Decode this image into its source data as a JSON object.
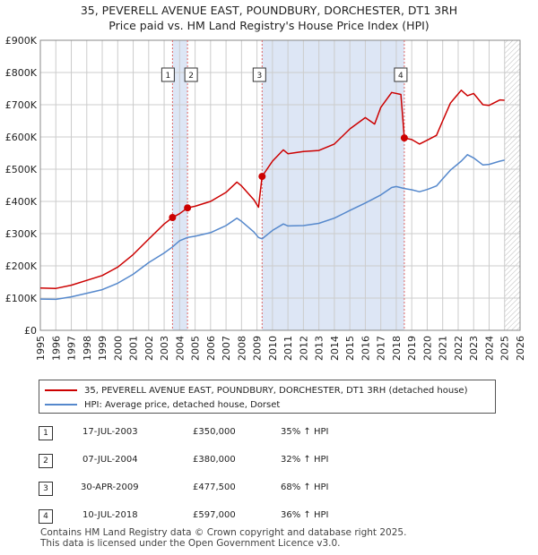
{
  "title_line1": "35, PEVERELL AVENUE EAST, POUNDBURY, DORCHESTER, DT1 3RH",
  "title_line2": "Price paid vs. HM Land Registry's House Price Index (HPI)",
  "legend": {
    "property": "35, PEVERELL AVENUE EAST, POUNDBURY, DORCHESTER, DT1 3RH (detached house)",
    "hpi": "HPI: Average price, detached house, Dorset"
  },
  "sales_table": [
    {
      "num": "1",
      "date": "17-JUL-2003",
      "price": "£350,000",
      "hpi": "35% ↑ HPI"
    },
    {
      "num": "2",
      "date": "07-JUL-2004",
      "price": "£380,000",
      "hpi": "32% ↑ HPI"
    },
    {
      "num": "3",
      "date": "30-APR-2009",
      "price": "£477,500",
      "hpi": "68% ↑ HPI"
    },
    {
      "num": "4",
      "date": "10-JUL-2018",
      "price": "£597,000",
      "hpi": "36% ↑ HPI"
    }
  ],
  "footer": {
    "line1": "Contains HM Land Registry data © Crown copyright and database right 2025.",
    "line2": "This data is licensed under the Open Government Licence v3.0."
  },
  "colors": {
    "property": "#cc0000",
    "hpi": "#5588cc",
    "shade": "#dde6f5",
    "grid": "#cccccc",
    "marker_line": "#dd6666"
  },
  "chart_data": {
    "type": "line",
    "x_axis": {
      "min": 1995,
      "max": 2026,
      "ticks": [
        "1995",
        "1996",
        "1997",
        "1998",
        "1999",
        "2000",
        "2001",
        "2002",
        "2003",
        "2004",
        "2005",
        "2006",
        "2007",
        "2008",
        "2009",
        "2010",
        "2011",
        "2012",
        "2013",
        "2014",
        "2015",
        "2016",
        "2017",
        "2018",
        "2019",
        "2020",
        "2021",
        "2022",
        "2023",
        "2024",
        "2025",
        "2026"
      ]
    },
    "y_axis": {
      "min": 0,
      "max": 900000,
      "tick_values": [
        0,
        100000,
        200000,
        300000,
        400000,
        500000,
        600000,
        700000,
        800000,
        900000
      ],
      "tick_labels": [
        "£0",
        "£100K",
        "£200K",
        "£300K",
        "£400K",
        "£500K",
        "£600K",
        "£700K",
        "£800K",
        "£900K"
      ]
    },
    "grid": true,
    "legend_position": "below",
    "shaded_periods": [
      [
        2003.54,
        2004.51
      ],
      [
        2009.33,
        2018.52
      ]
    ],
    "hatched_after": 2025.0,
    "sales": [
      {
        "label": "1",
        "x": 2003.54,
        "y": 350000
      },
      {
        "label": "2",
        "x": 2004.51,
        "y": 380000
      },
      {
        "label": "3",
        "x": 2009.33,
        "y": 477500
      },
      {
        "label": "4",
        "x": 2018.52,
        "y": 597000
      }
    ],
    "series": [
      {
        "name": "35, PEVERELL AVENUE EAST, POUNDBURY, DORCHESTER, DT1 3RH (detached house)",
        "color": "#cc0000",
        "points": [
          [
            1995,
            131000
          ],
          [
            1996,
            130000
          ],
          [
            1997,
            140000
          ],
          [
            1998,
            155000
          ],
          [
            1999,
            170000
          ],
          [
            2000,
            196000
          ],
          [
            2001,
            235000
          ],
          [
            2002,
            283000
          ],
          [
            2003,
            330000
          ],
          [
            2003.54,
            350000
          ],
          [
            2004,
            362000
          ],
          [
            2004.51,
            380000
          ],
          [
            2005,
            385000
          ],
          [
            2006,
            400000
          ],
          [
            2007,
            428000
          ],
          [
            2007.7,
            460000
          ],
          [
            2008,
            448000
          ],
          [
            2008.8,
            405000
          ],
          [
            2009.1,
            382000
          ],
          [
            2009.33,
            477500
          ],
          [
            2010,
            525000
          ],
          [
            2010.7,
            560000
          ],
          [
            2011,
            548000
          ],
          [
            2012,
            555000
          ],
          [
            2013,
            558000
          ],
          [
            2014,
            578000
          ],
          [
            2015,
            625000
          ],
          [
            2016,
            660000
          ],
          [
            2016.6,
            640000
          ],
          [
            2017,
            692000
          ],
          [
            2017.7,
            738000
          ],
          [
            2018.3,
            732000
          ],
          [
            2018.52,
            597000
          ],
          [
            2019,
            592000
          ],
          [
            2019.5,
            578000
          ],
          [
            2020,
            590000
          ],
          [
            2020.6,
            605000
          ],
          [
            2021,
            650000
          ],
          [
            2021.5,
            705000
          ],
          [
            2022.2,
            745000
          ],
          [
            2022.6,
            728000
          ],
          [
            2023,
            735000
          ],
          [
            2023.6,
            700000
          ],
          [
            2024,
            698000
          ],
          [
            2024.7,
            715000
          ],
          [
            2025,
            714000
          ]
        ]
      },
      {
        "name": "HPI: Average price, detached house, Dorset",
        "color": "#5588cc",
        "points": [
          [
            1995,
            97000
          ],
          [
            1996,
            96000
          ],
          [
            1997,
            104000
          ],
          [
            1998,
            115000
          ],
          [
            1999,
            126000
          ],
          [
            2000,
            146000
          ],
          [
            2001,
            174000
          ],
          [
            2002,
            210000
          ],
          [
            2003,
            240000
          ],
          [
            2003.54,
            259000
          ],
          [
            2004,
            278000
          ],
          [
            2004.51,
            288000
          ],
          [
            2005,
            292000
          ],
          [
            2006,
            303000
          ],
          [
            2007,
            325000
          ],
          [
            2007.7,
            348000
          ],
          [
            2008,
            338000
          ],
          [
            2008.8,
            305000
          ],
          [
            2009.1,
            288000
          ],
          [
            2009.33,
            284000
          ],
          [
            2010,
            310000
          ],
          [
            2010.7,
            330000
          ],
          [
            2011,
            324000
          ],
          [
            2012,
            325000
          ],
          [
            2013,
            332000
          ],
          [
            2014,
            348000
          ],
          [
            2015,
            372000
          ],
          [
            2016,
            395000
          ],
          [
            2017,
            420000
          ],
          [
            2017.7,
            443000
          ],
          [
            2018,
            446000
          ],
          [
            2018.52,
            440000
          ],
          [
            2019,
            436000
          ],
          [
            2019.5,
            430000
          ],
          [
            2020,
            437000
          ],
          [
            2020.6,
            448000
          ],
          [
            2021,
            470000
          ],
          [
            2021.5,
            497000
          ],
          [
            2022.2,
            525000
          ],
          [
            2022.6,
            545000
          ],
          [
            2023,
            535000
          ],
          [
            2023.6,
            513000
          ],
          [
            2024,
            515000
          ],
          [
            2024.7,
            525000
          ],
          [
            2025,
            528000
          ]
        ]
      }
    ]
  }
}
